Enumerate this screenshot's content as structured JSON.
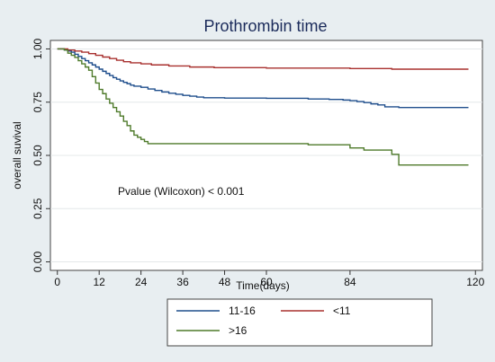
{
  "chart_data": {
    "type": "line",
    "title": "Prothrombin time",
    "xlabel": "Time(days)",
    "ylabel": "overall suvival",
    "xlim": [
      -2,
      122
    ],
    "ylim": [
      -0.04,
      1.04
    ],
    "x_ticks": [
      0,
      12,
      24,
      36,
      48,
      60,
      84,
      120
    ],
    "y_ticks": [
      0.0,
      0.25,
      0.5,
      0.75,
      1.0
    ],
    "y_tick_labels": [
      "0.00",
      "0.25",
      "0.50",
      "0.75",
      "1.00"
    ],
    "grid": true,
    "legend_position": "bottom",
    "annotation": "Pvalue (Wilcoxon) < 0.001",
    "series": [
      {
        "name": "11-16",
        "color": "#1f4e8c",
        "points": [
          [
            0,
            1.0
          ],
          [
            2,
            0.995
          ],
          [
            3,
            0.99
          ],
          [
            4,
            0.985
          ],
          [
            5,
            0.975
          ],
          [
            6,
            0.965
          ],
          [
            7,
            0.955
          ],
          [
            8,
            0.945
          ],
          [
            9,
            0.935
          ],
          [
            10,
            0.925
          ],
          [
            11,
            0.915
          ],
          [
            12,
            0.905
          ],
          [
            13,
            0.895
          ],
          [
            14,
            0.885
          ],
          [
            15,
            0.875
          ],
          [
            16,
            0.865
          ],
          [
            17,
            0.858
          ],
          [
            18,
            0.85
          ],
          [
            19,
            0.843
          ],
          [
            20,
            0.837
          ],
          [
            21,
            0.83
          ],
          [
            22,
            0.825
          ],
          [
            24,
            0.82
          ],
          [
            26,
            0.812
          ],
          [
            28,
            0.805
          ],
          [
            30,
            0.798
          ],
          [
            32,
            0.792
          ],
          [
            34,
            0.787
          ],
          [
            36,
            0.782
          ],
          [
            38,
            0.778
          ],
          [
            40,
            0.774
          ],
          [
            42,
            0.771
          ],
          [
            48,
            0.769
          ],
          [
            60,
            0.768
          ],
          [
            72,
            0.765
          ],
          [
            78,
            0.763
          ],
          [
            82,
            0.76
          ],
          [
            84,
            0.757
          ],
          [
            86,
            0.753
          ],
          [
            88,
            0.748
          ],
          [
            90,
            0.742
          ],
          [
            92,
            0.737
          ],
          [
            94,
            0.728
          ],
          [
            98,
            0.725
          ],
          [
            118,
            0.725
          ]
        ]
      },
      {
        "name": "<11",
        "color": "#a8302e",
        "points": [
          [
            0,
            1.0
          ],
          [
            3,
            0.995
          ],
          [
            5,
            0.99
          ],
          [
            7,
            0.985
          ],
          [
            9,
            0.978
          ],
          [
            11,
            0.97
          ],
          [
            13,
            0.962
          ],
          [
            15,
            0.955
          ],
          [
            17,
            0.947
          ],
          [
            19,
            0.94
          ],
          [
            21,
            0.935
          ],
          [
            24,
            0.93
          ],
          [
            27,
            0.925
          ],
          [
            32,
            0.92
          ],
          [
            38,
            0.915
          ],
          [
            45,
            0.912
          ],
          [
            60,
            0.91
          ],
          [
            84,
            0.908
          ],
          [
            96,
            0.905
          ],
          [
            118,
            0.905
          ]
        ]
      },
      {
        "name": ">16",
        "color": "#4e7a2a",
        "points": [
          [
            0,
            1.0
          ],
          [
            2,
            0.995
          ],
          [
            3,
            0.98
          ],
          [
            4,
            0.97
          ],
          [
            5,
            0.96
          ],
          [
            6,
            0.945
          ],
          [
            7,
            0.93
          ],
          [
            8,
            0.915
          ],
          [
            9,
            0.9
          ],
          [
            10,
            0.87
          ],
          [
            11,
            0.84
          ],
          [
            12,
            0.81
          ],
          [
            13,
            0.79
          ],
          [
            14,
            0.765
          ],
          [
            15,
            0.745
          ],
          [
            16,
            0.725
          ],
          [
            17,
            0.705
          ],
          [
            18,
            0.685
          ],
          [
            19,
            0.66
          ],
          [
            20,
            0.64
          ],
          [
            21,
            0.615
          ],
          [
            22,
            0.595
          ],
          [
            23,
            0.585
          ],
          [
            24,
            0.575
          ],
          [
            25,
            0.565
          ],
          [
            26,
            0.555
          ],
          [
            40,
            0.555
          ],
          [
            72,
            0.55
          ],
          [
            84,
            0.535
          ],
          [
            88,
            0.525
          ],
          [
            96,
            0.505
          ],
          [
            98,
            0.455
          ],
          [
            118,
            0.455
          ]
        ]
      }
    ]
  }
}
